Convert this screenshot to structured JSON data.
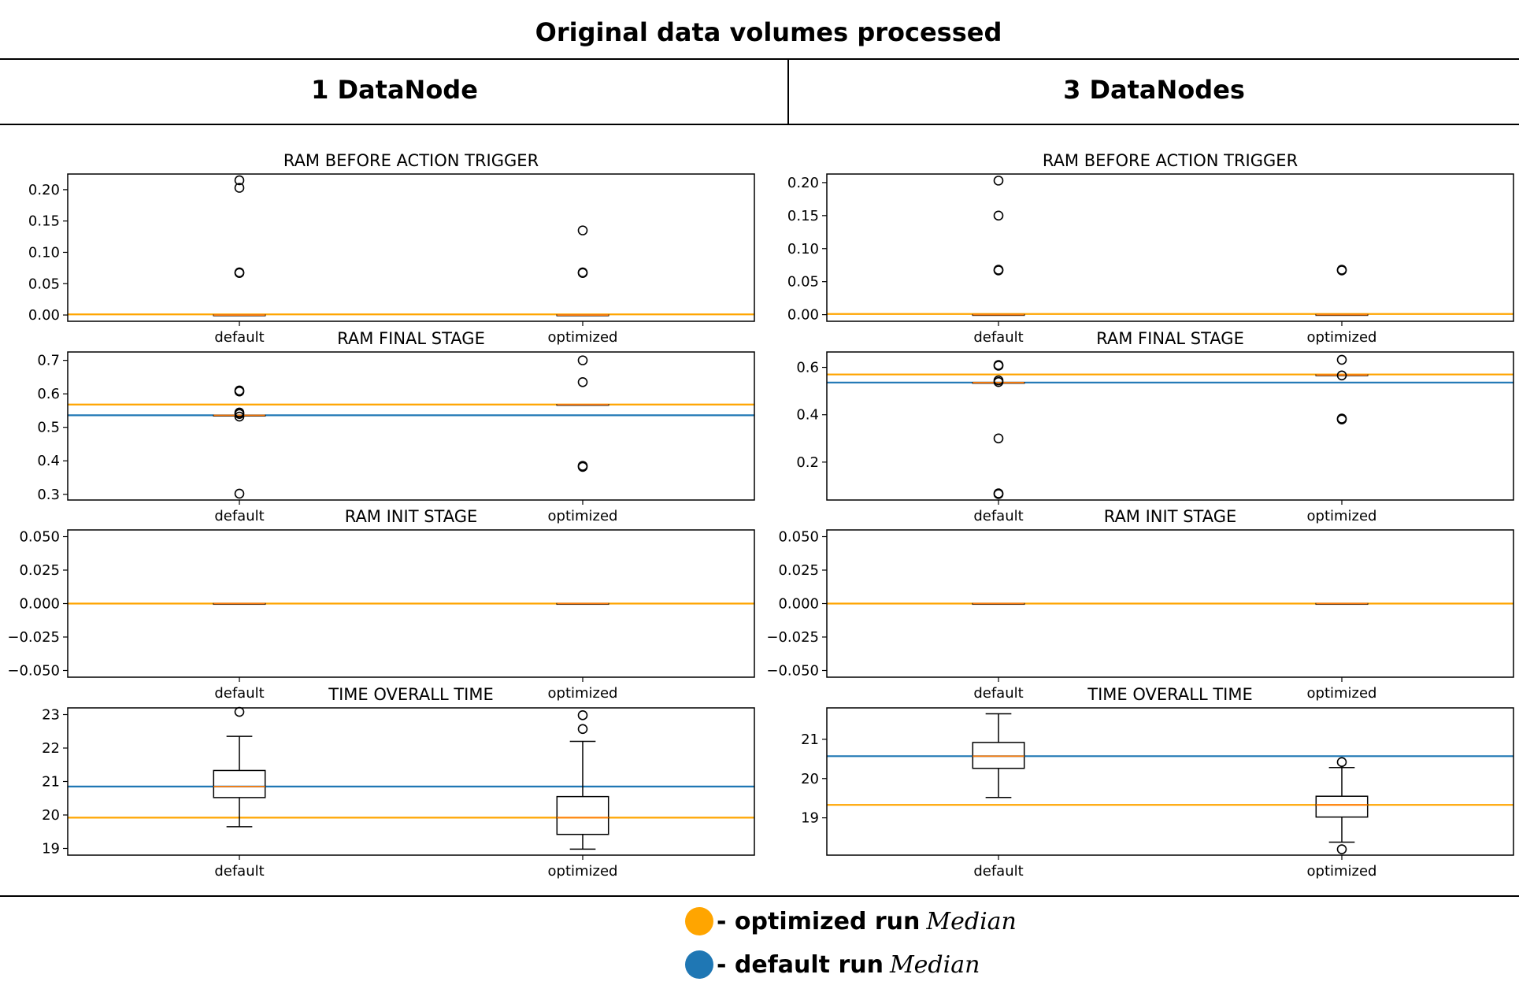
{
  "figure": {
    "title": "Original data volumes processed",
    "columns": [
      "1 DataNode",
      "3 DataNodes"
    ]
  },
  "legend": {
    "items": [
      {
        "label": "- optimized run",
        "italic": "Median",
        "color": "#ffa500"
      },
      {
        "label": "- default run",
        "italic": "Median",
        "color": "#1f77b4"
      }
    ]
  },
  "colors": {
    "optimized_median_line": "#ffa500",
    "default_median_line": "#1f77b4",
    "box_median": "#ff7f0e"
  },
  "chart_data": [
    {
      "type": "box",
      "column": "1 DataNode",
      "title": "RAM BEFORE ACTION TRIGGER",
      "categories": [
        "default",
        "optimized"
      ],
      "ylim": [
        -0.01,
        0.225
      ],
      "yticks": [
        0.0,
        0.05,
        0.1,
        0.15,
        0.2
      ],
      "tick_labels": [
        "0.00",
        "0.05",
        "0.10",
        "0.15",
        "0.20"
      ],
      "boxes": [
        {
          "category": "default",
          "q1": 0,
          "median": 0,
          "q3": 0,
          "whisker_low": 0,
          "whisker_high": 0,
          "outliers": [
            0.067,
            0.068,
            0.203,
            0.215
          ]
        },
        {
          "category": "optimized",
          "q1": 0,
          "median": 0,
          "q3": 0,
          "whisker_low": 0,
          "whisker_high": 0,
          "outliers": [
            0.067,
            0.068,
            0.135
          ]
        }
      ],
      "median_lines": {
        "optimized": 0.001
      }
    },
    {
      "type": "box",
      "column": "1 DataNode",
      "title": "RAM FINAL STAGE",
      "categories": [
        "default",
        "optimized"
      ],
      "ylim": [
        0.283,
        0.725
      ],
      "yticks": [
        0.3,
        0.4,
        0.5,
        0.6,
        0.7
      ],
      "tick_labels": [
        "0.3",
        "0.4",
        "0.5",
        "0.6",
        "0.7"
      ],
      "boxes": [
        {
          "category": "default",
          "q1": 0.536,
          "median": 0.536,
          "q3": 0.536,
          "whisker_low": 0.536,
          "whisker_high": 0.536,
          "outliers": [
            0.302,
            0.532,
            0.54,
            0.544,
            0.607,
            0.61
          ]
        },
        {
          "category": "optimized",
          "q1": 0.568,
          "median": 0.568,
          "q3": 0.568,
          "whisker_low": 0.568,
          "whisker_high": 0.568,
          "outliers": [
            0.382,
            0.385,
            0.635,
            0.7
          ]
        }
      ],
      "median_lines": {
        "optimized": 0.568,
        "default": 0.536
      }
    },
    {
      "type": "box",
      "column": "1 DataNode",
      "title": "RAM INIT STAGE",
      "categories": [
        "default",
        "optimized"
      ],
      "ylim": [
        -0.055,
        0.055
      ],
      "yticks": [
        -0.05,
        -0.025,
        0.0,
        0.025,
        0.05
      ],
      "tick_labels": [
        "−0.050",
        "−0.025",
        "0.000",
        "0.025",
        "0.050"
      ],
      "boxes": [
        {
          "category": "default",
          "q1": 0,
          "median": 0,
          "q3": 0,
          "whisker_low": 0,
          "whisker_high": 0,
          "outliers": []
        },
        {
          "category": "optimized",
          "q1": 0,
          "median": 0,
          "q3": 0,
          "whisker_low": 0,
          "whisker_high": 0,
          "outliers": []
        }
      ],
      "median_lines": {
        "optimized": 0.0
      }
    },
    {
      "type": "box",
      "column": "1 DataNode",
      "title": "TIME OVERALL TIME",
      "categories": [
        "default",
        "optimized"
      ],
      "ylim": [
        18.8,
        23.2
      ],
      "yticks": [
        19,
        20,
        21,
        22,
        23
      ],
      "tick_labels": [
        "19",
        "20",
        "21",
        "22",
        "23"
      ],
      "boxes": [
        {
          "category": "default",
          "q1": 20.52,
          "median": 20.85,
          "q3": 21.33,
          "whisker_low": 19.65,
          "whisker_high": 22.35,
          "outliers": [
            23.08
          ]
        },
        {
          "category": "optimized",
          "q1": 19.42,
          "median": 19.92,
          "q3": 20.55,
          "whisker_low": 18.98,
          "whisker_high": 22.2,
          "outliers": [
            22.57,
            22.98
          ]
        }
      ],
      "median_lines": {
        "optimized": 19.92,
        "default": 20.85
      }
    },
    {
      "type": "box",
      "column": "3 DataNodes",
      "title": "RAM BEFORE ACTION TRIGGER",
      "categories": [
        "default",
        "optimized"
      ],
      "ylim": [
        -0.01,
        0.213
      ],
      "yticks": [
        0.0,
        0.05,
        0.1,
        0.15,
        0.2
      ],
      "tick_labels": [
        "0.00",
        "0.05",
        "0.10",
        "0.15",
        "0.20"
      ],
      "boxes": [
        {
          "category": "default",
          "q1": 0,
          "median": 0,
          "q3": 0,
          "whisker_low": 0,
          "whisker_high": 0,
          "outliers": [
            0.067,
            0.068,
            0.15,
            0.203
          ]
        },
        {
          "category": "optimized",
          "q1": 0,
          "median": 0,
          "q3": 0,
          "whisker_low": 0,
          "whisker_high": 0,
          "outliers": [
            0.067,
            0.068
          ]
        }
      ],
      "median_lines": {
        "optimized": 0.001
      }
    },
    {
      "type": "box",
      "column": "3 DataNodes",
      "title": "RAM FINAL STAGE",
      "categories": [
        "default",
        "optimized"
      ],
      "ylim": [
        0.04,
        0.665
      ],
      "yticks": [
        0.2,
        0.4,
        0.6
      ],
      "tick_labels": [
        "0.2",
        "0.4",
        "0.6"
      ],
      "boxes": [
        {
          "category": "default",
          "q1": 0.536,
          "median": 0.536,
          "q3": 0.536,
          "whisker_low": 0.536,
          "whisker_high": 0.536,
          "outliers": [
            0.065,
            0.068,
            0.3,
            0.538,
            0.545,
            0.607,
            0.61
          ]
        },
        {
          "category": "optimized",
          "q1": 0.568,
          "median": 0.568,
          "q3": 0.568,
          "whisker_low": 0.568,
          "whisker_high": 0.568,
          "outliers": [
            0.38,
            0.384,
            0.566,
            0.632
          ]
        }
      ],
      "median_lines": {
        "optimized": 0.57,
        "default": 0.536
      }
    },
    {
      "type": "box",
      "column": "3 DataNodes",
      "title": "RAM INIT STAGE",
      "categories": [
        "default",
        "optimized"
      ],
      "ylim": [
        -0.055,
        0.055
      ],
      "yticks": [
        -0.05,
        -0.025,
        0.0,
        0.025,
        0.05
      ],
      "tick_labels": [
        "−0.050",
        "−0.025",
        "0.000",
        "0.025",
        "0.050"
      ],
      "boxes": [
        {
          "category": "default",
          "q1": 0,
          "median": 0,
          "q3": 0,
          "whisker_low": 0,
          "whisker_high": 0,
          "outliers": []
        },
        {
          "category": "optimized",
          "q1": 0,
          "median": 0,
          "q3": 0,
          "whisker_low": 0,
          "whisker_high": 0,
          "outliers": []
        }
      ],
      "median_lines": {
        "optimized": 0.0
      }
    },
    {
      "type": "box",
      "column": "3 DataNodes",
      "title": "TIME OVERALL TIME",
      "categories": [
        "default",
        "optimized"
      ],
      "ylim": [
        18.05,
        21.8
      ],
      "yticks": [
        19,
        20,
        21
      ],
      "tick_labels": [
        "19",
        "20",
        "21"
      ],
      "boxes": [
        {
          "category": "default",
          "q1": 20.26,
          "median": 20.57,
          "q3": 20.92,
          "whisker_low": 19.52,
          "whisker_high": 21.65,
          "outliers": []
        },
        {
          "category": "optimized",
          "q1": 19.02,
          "median": 19.33,
          "q3": 19.55,
          "whisker_low": 18.38,
          "whisker_high": 20.28,
          "outliers": [
            18.2,
            20.42
          ]
        }
      ],
      "median_lines": {
        "optimized": 19.33,
        "default": 20.57
      }
    }
  ]
}
